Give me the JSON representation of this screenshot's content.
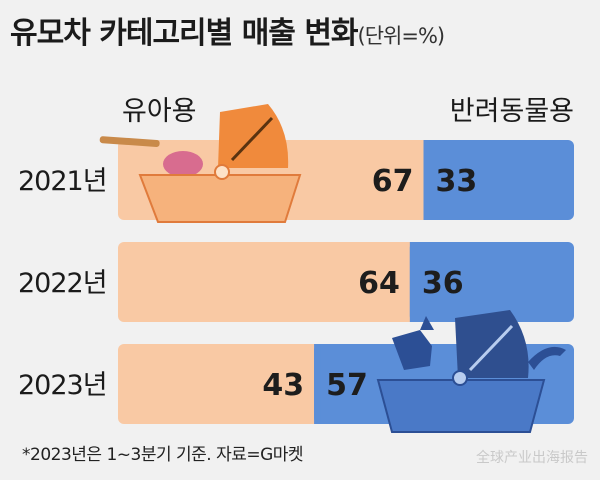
{
  "title": "유모차 카테고리별 매출 변화",
  "unit_note": "(단위=%)",
  "footnote": "*2023년은 1~3분기 기준. 자료=G마켓",
  "watermark": "全球产业出海报告",
  "colors": {
    "baby": "#f9c9a4",
    "pet": "#5b8ed8",
    "baby_illustration": "#f08a3c",
    "pet_illustration": "#2f4f8f",
    "text": "#1b1b1b"
  },
  "chart_data": {
    "type": "bar",
    "stacked": true,
    "orientation": "horizontal",
    "title": "유모차 카테고리별 매출 변화",
    "unit": "%",
    "categories": [
      "2021년",
      "2022년",
      "2023년"
    ],
    "series": [
      {
        "name": "유아용",
        "values": [
          67,
          64,
          43
        ]
      },
      {
        "name": "반려동물용",
        "values": [
          33,
          36,
          57
        ]
      }
    ],
    "xlim": [
      0,
      100
    ],
    "legend": "top"
  }
}
